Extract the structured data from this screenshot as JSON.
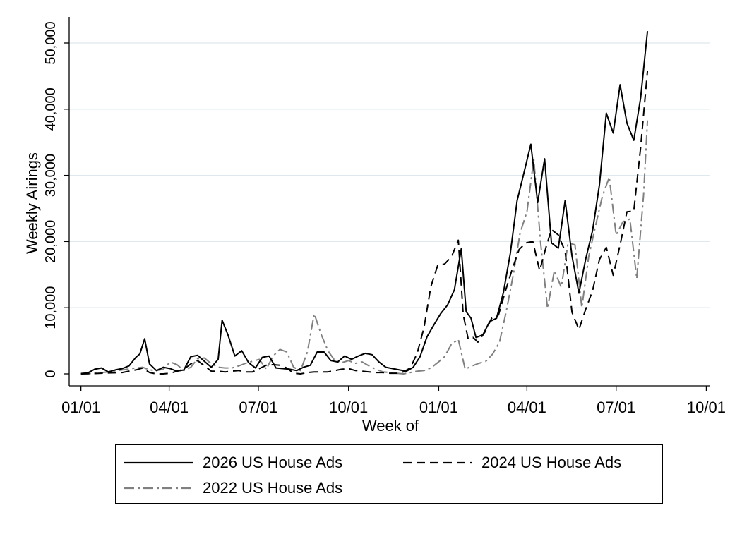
{
  "chart_data": {
    "type": "line",
    "title": "",
    "xlabel": "Week of",
    "ylabel": "Weekly Airings",
    "ylim": [
      0,
      54000
    ],
    "y_ticks": [
      0,
      10000,
      20000,
      30000,
      40000,
      50000
    ],
    "y_tick_labels": [
      "0",
      "10,000",
      "20,000",
      "30,000",
      "40,000",
      "50,000"
    ],
    "x_tick_labels": [
      "01/01",
      "04/01",
      "07/01",
      "10/01",
      "01/01",
      "04/01",
      "07/01",
      "10/01"
    ],
    "x_tick_days": [
      0,
      90,
      181,
      273,
      365,
      455,
      546,
      638
    ],
    "x_range_days": [
      -12,
      642
    ],
    "grid": "horizontal",
    "legend_position": "bottom",
    "series": [
      {
        "name": "2026 US House Ads",
        "style": "solid",
        "color": "#000000",
        "points": [
          [
            0,
            50
          ],
          [
            7,
            150
          ],
          [
            14,
            700
          ],
          [
            21,
            900
          ],
          [
            28,
            300
          ],
          [
            35,
            600
          ],
          [
            42,
            800
          ],
          [
            49,
            1200
          ],
          [
            56,
            2500
          ],
          [
            60,
            3000
          ],
          [
            65,
            5300
          ],
          [
            70,
            1500
          ],
          [
            77,
            500
          ],
          [
            84,
            1000
          ],
          [
            91,
            800
          ],
          [
            98,
            400
          ],
          [
            105,
            600
          ],
          [
            112,
            2600
          ],
          [
            119,
            2800
          ],
          [
            126,
            1900
          ],
          [
            133,
            1000
          ],
          [
            140,
            2200
          ],
          [
            144,
            8100
          ],
          [
            150,
            5900
          ],
          [
            157,
            2700
          ],
          [
            164,
            3500
          ],
          [
            171,
            1700
          ],
          [
            178,
            900
          ],
          [
            185,
            2500
          ],
          [
            192,
            2700
          ],
          [
            199,
            900
          ],
          [
            206,
            800
          ],
          [
            213,
            700
          ],
          [
            220,
            500
          ],
          [
            227,
            1000
          ],
          [
            234,
            1300
          ],
          [
            241,
            3300
          ],
          [
            248,
            3300
          ],
          [
            255,
            2000
          ],
          [
            262,
            1800
          ],
          [
            269,
            2700
          ],
          [
            276,
            2200
          ],
          [
            283,
            2700
          ],
          [
            290,
            3100
          ],
          [
            297,
            2900
          ],
          [
            304,
            1800
          ],
          [
            311,
            1000
          ],
          [
            318,
            800
          ],
          [
            325,
            600
          ],
          [
            332,
            400
          ],
          [
            339,
            1000
          ],
          [
            346,
            2600
          ],
          [
            353,
            5600
          ],
          [
            360,
            7400
          ],
          [
            367,
            9100
          ],
          [
            374,
            10400
          ],
          [
            381,
            12700
          ],
          [
            388,
            18900
          ],
          [
            393,
            9400
          ],
          [
            398,
            8400
          ],
          [
            403,
            5500
          ],
          [
            410,
            5900
          ],
          [
            417,
            7900
          ],
          [
            424,
            8400
          ],
          [
            431,
            12300
          ],
          [
            438,
            18200
          ],
          [
            445,
            26200
          ],
          [
            452,
            30400
          ],
          [
            459,
            34700
          ],
          [
            466,
            25900
          ],
          [
            473,
            32500
          ],
          [
            480,
            19800
          ],
          [
            487,
            19000
          ],
          [
            494,
            26200
          ],
          [
            501,
            17800
          ],
          [
            508,
            12200
          ],
          [
            515,
            17400
          ],
          [
            522,
            21700
          ],
          [
            529,
            28600
          ],
          [
            536,
            39400
          ],
          [
            543,
            36400
          ],
          [
            550,
            43700
          ],
          [
            557,
            37900
          ],
          [
            564,
            35300
          ],
          [
            571,
            41700
          ],
          [
            578,
            51800
          ]
        ]
      },
      {
        "name": "2024 US House Ads",
        "style": "dashed",
        "color": "#000000",
        "points": [
          [
            0,
            0
          ],
          [
            14,
            50
          ],
          [
            28,
            150
          ],
          [
            42,
            200
          ],
          [
            49,
            400
          ],
          [
            56,
            600
          ],
          [
            63,
            900
          ],
          [
            70,
            200
          ],
          [
            77,
            0
          ],
          [
            84,
            0
          ],
          [
            91,
            100
          ],
          [
            98,
            400
          ],
          [
            105,
            700
          ],
          [
            112,
            1500
          ],
          [
            119,
            2000
          ],
          [
            126,
            1200
          ],
          [
            133,
            400
          ],
          [
            140,
            400
          ],
          [
            147,
            300
          ],
          [
            154,
            400
          ],
          [
            161,
            500
          ],
          [
            168,
            300
          ],
          [
            175,
            300
          ],
          [
            182,
            800
          ],
          [
            189,
            1300
          ],
          [
            196,
            1400
          ],
          [
            203,
            1300
          ],
          [
            210,
            900
          ],
          [
            217,
            100
          ],
          [
            224,
            0
          ],
          [
            231,
            200
          ],
          [
            238,
            300
          ],
          [
            245,
            300
          ],
          [
            252,
            300
          ],
          [
            259,
            500
          ],
          [
            266,
            700
          ],
          [
            273,
            800
          ],
          [
            280,
            500
          ],
          [
            287,
            400
          ],
          [
            294,
            300
          ],
          [
            301,
            200
          ],
          [
            308,
            200
          ],
          [
            315,
            100
          ],
          [
            322,
            100
          ],
          [
            329,
            300
          ],
          [
            336,
            900
          ],
          [
            343,
            3100
          ],
          [
            350,
            7000
          ],
          [
            357,
            13200
          ],
          [
            364,
            16400
          ],
          [
            371,
            16600
          ],
          [
            378,
            17700
          ],
          [
            385,
            20200
          ],
          [
            390,
            9000
          ],
          [
            395,
            5300
          ],
          [
            400,
            5500
          ],
          [
            405,
            4800
          ],
          [
            412,
            6300
          ],
          [
            419,
            8400
          ],
          [
            426,
            8900
          ],
          [
            433,
            12500
          ],
          [
            440,
            15800
          ],
          [
            447,
            18800
          ],
          [
            454,
            19800
          ],
          [
            461,
            20000
          ],
          [
            468,
            15600
          ],
          [
            475,
            19400
          ],
          [
            480,
            21800
          ],
          [
            487,
            21000
          ],
          [
            494,
            18500
          ],
          [
            501,
            9300
          ],
          [
            508,
            6700
          ],
          [
            515,
            9800
          ],
          [
            522,
            12600
          ],
          [
            529,
            17300
          ],
          [
            536,
            19100
          ],
          [
            543,
            14900
          ],
          [
            550,
            19500
          ],
          [
            557,
            24500
          ],
          [
            564,
            24600
          ],
          [
            571,
            34200
          ],
          [
            578,
            45800
          ]
        ]
      },
      {
        "name": "2022 US House Ads",
        "style": "dashdot",
        "color": "#808080",
        "points": [
          [
            0,
            0
          ],
          [
            14,
            100
          ],
          [
            28,
            300
          ],
          [
            42,
            600
          ],
          [
            56,
            900
          ],
          [
            63,
            1000
          ],
          [
            70,
            600
          ],
          [
            77,
            500
          ],
          [
            84,
            700
          ],
          [
            91,
            1800
          ],
          [
            98,
            1400
          ],
          [
            105,
            500
          ],
          [
            112,
            1000
          ],
          [
            119,
            2300
          ],
          [
            126,
            2400
          ],
          [
            133,
            1500
          ],
          [
            140,
            1000
          ],
          [
            147,
            900
          ],
          [
            154,
            900
          ],
          [
            161,
            1200
          ],
          [
            168,
            1600
          ],
          [
            175,
            1900
          ],
          [
            182,
            2200
          ],
          [
            189,
            700
          ],
          [
            196,
            2700
          ],
          [
            203,
            3700
          ],
          [
            210,
            3300
          ],
          [
            217,
            1000
          ],
          [
            224,
            500
          ],
          [
            231,
            3300
          ],
          [
            238,
            9100
          ],
          [
            245,
            6000
          ],
          [
            252,
            3500
          ],
          [
            259,
            2000
          ],
          [
            266,
            1700
          ],
          [
            273,
            2000
          ],
          [
            280,
            1600
          ],
          [
            287,
            1800
          ],
          [
            294,
            1200
          ],
          [
            301,
            700
          ],
          [
            308,
            300
          ],
          [
            315,
            200
          ],
          [
            322,
            100
          ],
          [
            329,
            0
          ],
          [
            336,
            200
          ],
          [
            343,
            400
          ],
          [
            350,
            500
          ],
          [
            357,
            900
          ],
          [
            364,
            1700
          ],
          [
            371,
            2600
          ],
          [
            378,
            4500
          ],
          [
            385,
            5200
          ],
          [
            392,
            700
          ],
          [
            399,
            1200
          ],
          [
            406,
            1600
          ],
          [
            413,
            1900
          ],
          [
            420,
            3000
          ],
          [
            427,
            4800
          ],
          [
            434,
            9500
          ],
          [
            441,
            14900
          ],
          [
            448,
            21300
          ],
          [
            455,
            24500
          ],
          [
            462,
            32400
          ],
          [
            469,
            19800
          ],
          [
            476,
            9900
          ],
          [
            483,
            15600
          ],
          [
            490,
            13100
          ],
          [
            497,
            19800
          ],
          [
            504,
            19500
          ],
          [
            511,
            10000
          ],
          [
            518,
            17700
          ],
          [
            525,
            22400
          ],
          [
            532,
            26900
          ],
          [
            539,
            29700
          ],
          [
            546,
            21000
          ],
          [
            553,
            23000
          ],
          [
            560,
            23400
          ],
          [
            567,
            14400
          ],
          [
            574,
            27100
          ],
          [
            578,
            38300
          ]
        ]
      }
    ]
  }
}
